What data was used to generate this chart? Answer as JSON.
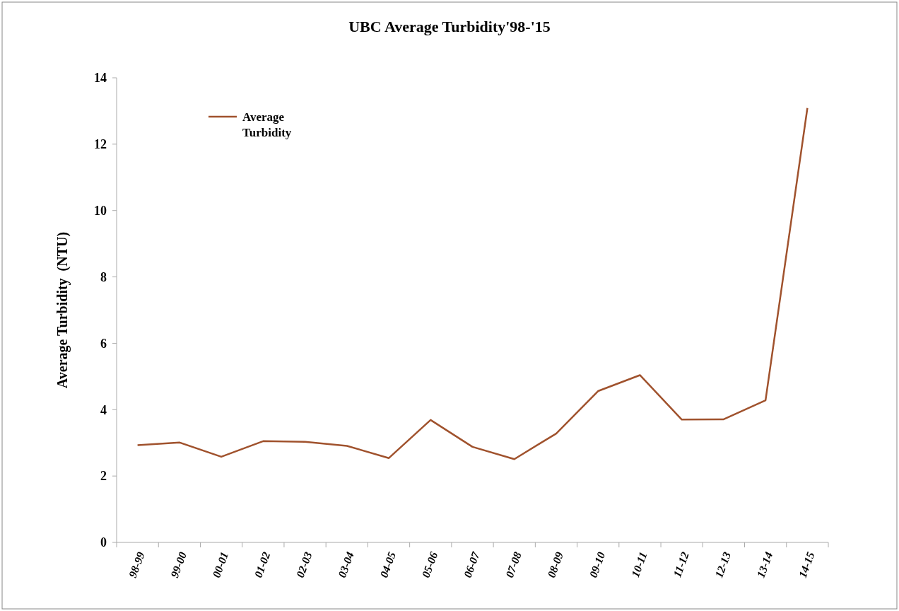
{
  "chart_data": {
    "type": "line",
    "title": "UBC Average Turbidity'98-'15",
    "ylabel": "Average Turbidity  (NTU)",
    "categories": [
      "98-99",
      "99-00",
      "00-01",
      "01-02",
      "02-03",
      "03-04",
      "04-05",
      "05-06",
      "06-07",
      "07-08",
      "08-09",
      "09-10",
      "10-11",
      "11-12",
      "12-13",
      "13-14",
      "14-15"
    ],
    "series": [
      {
        "name": "Average Turbidity",
        "color": "#a0522d",
        "values": [
          2.93,
          3.01,
          2.58,
          3.05,
          3.03,
          2.91,
          2.54,
          3.69,
          2.88,
          2.51,
          3.28,
          4.56,
          5.04,
          3.7,
          3.71,
          4.28,
          13.09
        ]
      }
    ],
    "ylim": [
      0,
      14
    ],
    "yticks": [
      0,
      2,
      4,
      6,
      8,
      10,
      12,
      14
    ],
    "grid": false,
    "legend": "top left",
    "marker": "none",
    "line_style": "solid"
  }
}
